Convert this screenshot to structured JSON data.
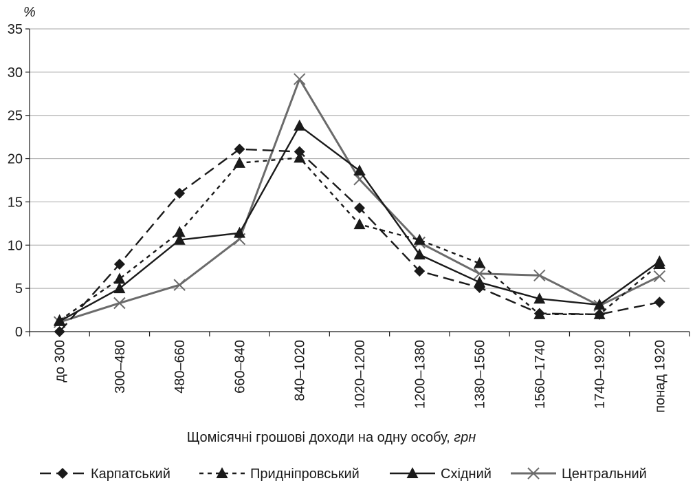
{
  "chart_data": {
    "type": "line",
    "title": "",
    "unit_label": "%",
    "xlabel_main": "Щомісячні грошові доходи на одну особу, ",
    "xlabel_unit": "грн",
    "ylim": [
      0,
      35
    ],
    "yticks": [
      0,
      5,
      10,
      15,
      20,
      25,
      30,
      35
    ],
    "grid": "horizontal",
    "legend_position": "bottom",
    "categories": [
      "до 300",
      "300–480",
      "480–660",
      "660–840",
      "840–1020",
      "1020–1200",
      "1200–1380",
      "1380–1560",
      "1560–1740",
      "1740–1920",
      "понад 1920"
    ],
    "series": [
      {
        "name": "Карпатський",
        "color": "#1a1a1a",
        "dash": "long",
        "marker": "diamond",
        "values": [
          0,
          7.8,
          16,
          21.1,
          20.8,
          14.3,
          7,
          5.1,
          2.1,
          2,
          3.4
        ]
      },
      {
        "name": "Придніпровський",
        "color": "#1a1a1a",
        "dash": "short",
        "marker": "triangle",
        "values": [
          1.3,
          6.1,
          11.5,
          19.5,
          20.1,
          12.4,
          10.6,
          7.9,
          2,
          2,
          7.8
        ]
      },
      {
        "name": "Східний",
        "color": "#1a1a1a",
        "dash": "solid",
        "marker": "triangle",
        "values": [
          1.2,
          5,
          10.6,
          11.4,
          23.8,
          18.6,
          8.9,
          5.7,
          3.8,
          3.1,
          8.1
        ]
      },
      {
        "name": "Центральний",
        "color": "#6b6b6b",
        "dash": "solid",
        "marker": "x",
        "values": [
          1.1,
          3.3,
          5.4,
          10.7,
          29.2,
          17.6,
          10.3,
          6.7,
          6.5,
          3,
          6.4
        ]
      }
    ]
  }
}
